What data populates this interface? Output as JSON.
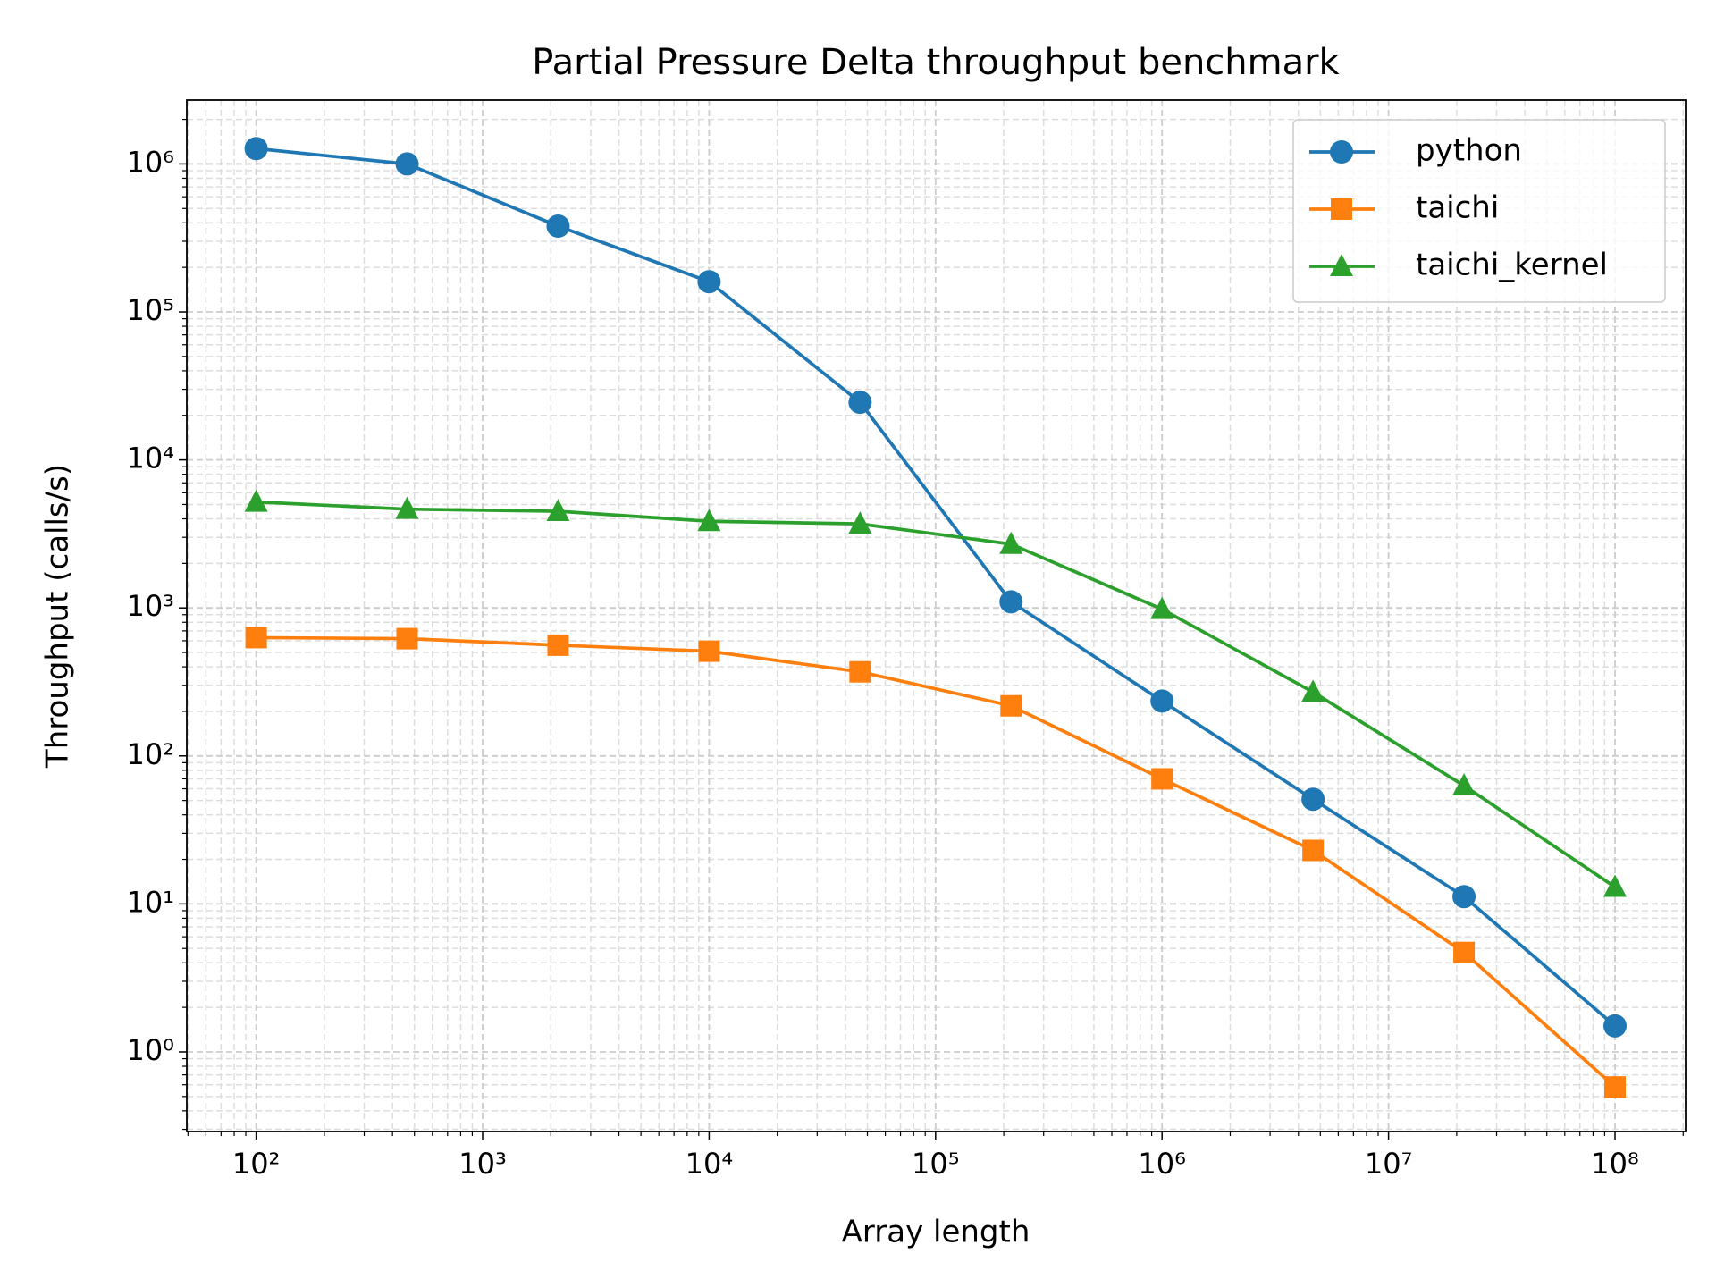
{
  "chart_data": {
    "type": "line",
    "title": "Partial Pressure Delta throughput benchmark",
    "x_label": "Array length",
    "y_label": "Throughput (calls/s)",
    "x": [
      100,
      464,
      2154,
      10000,
      46416,
      215443,
      1000000,
      4641589,
      21544347,
      100000000
    ],
    "series": [
      {
        "name": "python",
        "color": "#1f77b4",
        "marker": "circle",
        "values": [
          1270000,
          1000000,
          380000,
          160000,
          24500,
          1100,
          235,
          51,
          11.2,
          1.5
        ]
      },
      {
        "name": "taichi",
        "color": "#ff7f0e",
        "marker": "square",
        "values": [
          630,
          620,
          560,
          510,
          370,
          218,
          70,
          23,
          4.7,
          0.58
        ]
      },
      {
        "name": "taichi_kernel",
        "color": "#2ca02c",
        "marker": "triangle",
        "values": [
          5200,
          4650,
          4500,
          3850,
          3700,
          2700,
          980,
          270,
          63,
          13
        ]
      }
    ],
    "xscale": "log",
    "yscale": "log",
    "xlim": [
      49.4,
      205000000
    ],
    "ylim": [
      0.29,
      2700000
    ],
    "xticks": [
      {
        "value": 100,
        "label": "10²"
      },
      {
        "value": 1000,
        "label": "10³"
      },
      {
        "value": 10000,
        "label": "10⁴"
      },
      {
        "value": 100000,
        "label": "10⁵"
      },
      {
        "value": 1000000,
        "label": "10⁶"
      },
      {
        "value": 10000000,
        "label": "10⁷"
      },
      {
        "value": 100000000,
        "label": "10⁸"
      }
    ],
    "yticks": [
      {
        "value": 1,
        "label": "10⁰"
      },
      {
        "value": 10,
        "label": "10¹"
      },
      {
        "value": 100,
        "label": "10²"
      },
      {
        "value": 1000,
        "label": "10³"
      },
      {
        "value": 10000,
        "label": "10⁴"
      },
      {
        "value": 100000,
        "label": "10⁵"
      },
      {
        "value": 1000000,
        "label": "10⁶"
      }
    ],
    "grid": true,
    "minor_grid": true,
    "legend": "upper right"
  }
}
